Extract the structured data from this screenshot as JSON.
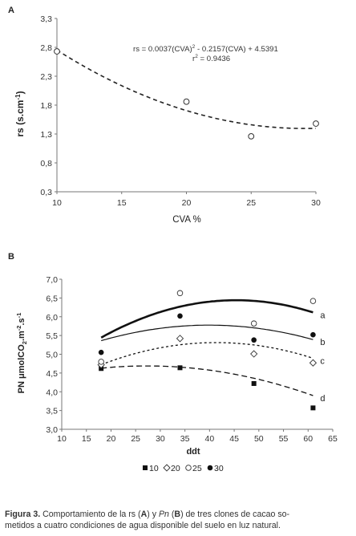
{
  "chart_data": [
    {
      "panel_label": "A",
      "type": "scatter",
      "xlabel": "CVA %",
      "ylabel": "rs (s.cm",
      "ylabel_sup": "-1",
      "ylabel_close": ")",
      "x_ticks": [
        10,
        15,
        20,
        25,
        30
      ],
      "y_ticks": [
        "0,3",
        "0,8",
        "1,3",
        "1,8",
        "2,3",
        "2,8",
        "3,3"
      ],
      "xlim": [
        10,
        30
      ],
      "ylim": [
        0.3,
        3.3
      ],
      "points": [
        {
          "x": 10,
          "y": 2.73
        },
        {
          "x": 20,
          "y": 1.86
        },
        {
          "x": 25,
          "y": 1.26
        },
        {
          "x": 30,
          "y": 1.48
        }
      ],
      "trendline": {
        "a": 0.0037,
        "b": -0.2157,
        "c": 4.5391,
        "style": "dashed"
      },
      "equation_parts": {
        "p1": "rs = 0.0037(CVA)",
        "sup": "2",
        "p2": " - 0.2157(CVA) + 4.5391"
      },
      "r2_parts": {
        "p1": "r",
        "sup": "2",
        "p2": " = 0.9436"
      },
      "grid": false
    },
    {
      "panel_label": "B",
      "type": "scatter",
      "xlabel": "ddt",
      "ylabel_parts": {
        "p1": "PN  μmolCO",
        "sub": "2",
        "p2": ".m",
        "sup1": "-2",
        "p3": ".s",
        "sup2": "-1"
      },
      "x_ticks": [
        10,
        15,
        20,
        25,
        30,
        35,
        40,
        45,
        50,
        55,
        60,
        65
      ],
      "y_ticks": [
        "3,0",
        "3,5",
        "4,0",
        "4,5",
        "5,0",
        "5,5",
        "6,0",
        "6,5",
        "7,0"
      ],
      "xlim": [
        10,
        65
      ],
      "ylim": [
        3.0,
        7.0
      ],
      "grid": false,
      "legend_position": "bottom",
      "series": [
        {
          "name": "10",
          "marker": "filled-square",
          "x": [
            18,
            34,
            49,
            61
          ],
          "y": [
            4.62,
            4.64,
            4.22,
            3.57
          ],
          "curve": {
            "a": -0.000695,
            "b": 0.0379,
            "c": 4.172
          },
          "line": "long-dash",
          "letter": "d"
        },
        {
          "name": "20",
          "marker": "open-diamond",
          "x": [
            18,
            34,
            49,
            61
          ],
          "y": [
            4.72,
            5.42,
            5.01,
            4.77
          ],
          "curve": {
            "a": -0.00108,
            "b": 0.0893,
            "c": 3.465
          },
          "line": "short-dash",
          "letter": "c"
        },
        {
          "name": "25",
          "marker": "open-circle",
          "x": [
            18,
            34,
            49,
            61
          ],
          "y": [
            4.8,
            6.63,
            5.82,
            6.42
          ],
          "curve": {
            "a": -0.000866,
            "b": 0.0691,
            "c": 4.398
          },
          "line": "thin-solid",
          "letter": "b"
        },
        {
          "name": "30",
          "marker": "filled-circle",
          "x": [
            18,
            34,
            49,
            61
          ],
          "y": [
            5.05,
            6.02,
            5.38,
            5.52
          ],
          "curve": {
            "a": -0.00133,
            "b": 0.1207,
            "c": 3.702
          },
          "line": "thick-solid",
          "letter": "a"
        }
      ]
    }
  ],
  "caption": {
    "label": "Figura 3.",
    "t1": " Comportamiento de la rs (",
    "a": "A",
    "t2": ") y ",
    "pn": "Pn",
    "t3": " (",
    "b": "B",
    "t4": ") de tres clones de cacao so-",
    "line2": "metidos a cuatro condiciones de agua disponible del suelo en luz natural."
  }
}
